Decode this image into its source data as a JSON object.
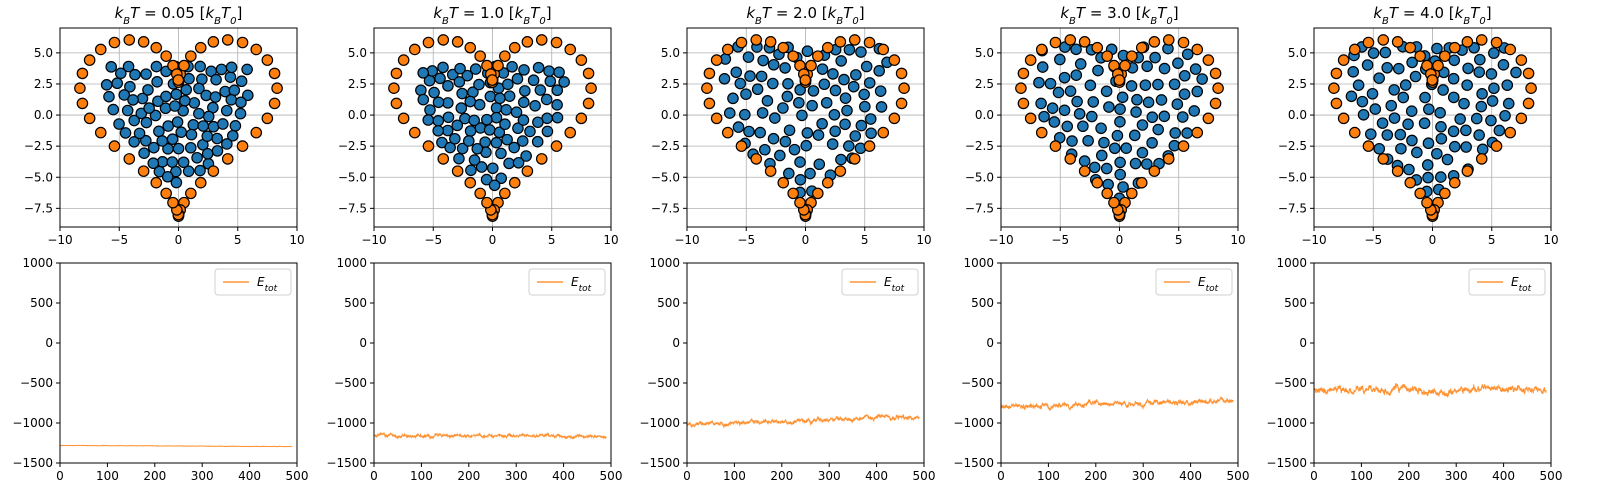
{
  "figure": {
    "panel_titles": [
      "k_B T = 0.05 [k_B T_0]",
      "k_B T = 1.0 [k_B T_0]",
      "k_B T = 2.0 [k_B T_0]",
      "k_B T = 3.0 [k_B T_0]",
      "k_B T = 4.0 [k_B T_0]"
    ],
    "legend_label": "E_tot"
  },
  "chart_data": [
    {
      "type": "scatter",
      "panel": 1,
      "title": "k_B T = 0.05 [k_B T_0]",
      "xlim": [
        -10,
        10
      ],
      "ylim": [
        -9,
        7
      ],
      "xticks": [
        "−10",
        "−5",
        "0",
        "5",
        "10"
      ],
      "yticks": [
        "−7.5",
        "−5.0",
        "−2.5",
        "0.0",
        "2.5",
        "5.0"
      ],
      "grid": true,
      "series": [
        {
          "role": "boundary",
          "color": "#ff7f0e",
          "shape": "heart"
        },
        {
          "role": "interior",
          "color": "#1f77b4",
          "distribution": "packed"
        }
      ]
    },
    {
      "type": "scatter",
      "panel": 2,
      "title": "k_B T = 1.0 [k_B T_0]",
      "xlim": [
        -10,
        10
      ],
      "ylim": [
        -9,
        7
      ],
      "xticks": [
        "−10",
        "−5",
        "0",
        "5",
        "10"
      ],
      "yticks": [
        "−7.5",
        "−5.0",
        "−2.5",
        "0.0",
        "2.5",
        "5.0"
      ],
      "grid": true,
      "series": [
        {
          "role": "boundary",
          "color": "#ff7f0e",
          "shape": "heart"
        },
        {
          "role": "interior",
          "color": "#1f77b4",
          "distribution": "packed"
        }
      ]
    },
    {
      "type": "scatter",
      "panel": 3,
      "title": "k_B T = 2.0 [k_B T_0]",
      "xlim": [
        -10,
        10
      ],
      "ylim": [
        -9,
        7
      ],
      "xticks": [
        "−10",
        "−5",
        "0",
        "5",
        "10"
      ],
      "yticks": [
        "−7.5",
        "−5.0",
        "−2.5",
        "0.0",
        "2.5",
        "5.0"
      ],
      "grid": true,
      "series": [
        {
          "role": "boundary",
          "color": "#ff7f0e",
          "shape": "heart"
        },
        {
          "role": "interior",
          "color": "#1f77b4",
          "distribution": "spread"
        }
      ]
    },
    {
      "type": "scatter",
      "panel": 4,
      "title": "k_B T = 3.0 [k_B T_0]",
      "xlim": [
        -10,
        10
      ],
      "ylim": [
        -9,
        7
      ],
      "xticks": [
        "−10",
        "−5",
        "0",
        "5",
        "10"
      ],
      "yticks": [
        "−7.5",
        "−5.0",
        "−2.5",
        "0.0",
        "2.5",
        "5.0"
      ],
      "grid": true,
      "series": [
        {
          "role": "boundary",
          "color": "#ff7f0e",
          "shape": "heart"
        },
        {
          "role": "interior",
          "color": "#1f77b4",
          "distribution": "spread"
        }
      ]
    },
    {
      "type": "scatter",
      "panel": 5,
      "title": "k_B T = 4.0 [k_B T_0]",
      "xlim": [
        -10,
        10
      ],
      "ylim": [
        -9,
        7
      ],
      "xticks": [
        "−10",
        "−5",
        "0",
        "5",
        "10"
      ],
      "yticks": [
        "−7.5",
        "−5.0",
        "−2.5",
        "0.0",
        "2.5",
        "5.0"
      ],
      "grid": true,
      "series": [
        {
          "role": "boundary",
          "color": "#ff7f0e",
          "shape": "heart"
        },
        {
          "role": "interior",
          "color": "#1f77b4",
          "distribution": "spread"
        }
      ]
    },
    {
      "type": "line",
      "panel": 1,
      "xlim": [
        0,
        500
      ],
      "ylim": [
        -1500,
        1000
      ],
      "xticks": [
        "0",
        "100",
        "200",
        "300",
        "400",
        "500"
      ],
      "yticks": [
        "−1500",
        "−1000",
        "−500",
        "0",
        "500",
        "1000"
      ],
      "legend": "top-right",
      "series": [
        {
          "name": "E_tot",
          "color": "#ff7f0e",
          "x_end": 490,
          "start": -1280,
          "end": -1295,
          "noise": 2
        }
      ]
    },
    {
      "type": "line",
      "panel": 2,
      "xlim": [
        0,
        500
      ],
      "ylim": [
        -1500,
        1000
      ],
      "xticks": [
        "0",
        "100",
        "200",
        "300",
        "400",
        "500"
      ],
      "yticks": [
        "−1500",
        "−1000",
        "−500",
        "0",
        "500",
        "1000"
      ],
      "legend": "top-right",
      "series": [
        {
          "name": "E_tot",
          "color": "#ff7f0e",
          "x_end": 490,
          "start": -1160,
          "end": -1165,
          "noise": 18
        }
      ]
    },
    {
      "type": "line",
      "panel": 3,
      "xlim": [
        0,
        500
      ],
      "ylim": [
        -1500,
        1000
      ],
      "xticks": [
        "0",
        "100",
        "200",
        "300",
        "400",
        "500"
      ],
      "yticks": [
        "−1500",
        "−1000",
        "−500",
        "0",
        "500",
        "1000"
      ],
      "legend": "top-right",
      "series": [
        {
          "name": "E_tot",
          "color": "#ff7f0e",
          "x_end": 490,
          "start": -1020,
          "end": -920,
          "noise": 25
        }
      ]
    },
    {
      "type": "line",
      "panel": 4,
      "xlim": [
        0,
        500
      ],
      "ylim": [
        -1500,
        1000
      ],
      "xticks": [
        "0",
        "100",
        "200",
        "300",
        "400",
        "500"
      ],
      "yticks": [
        "−1500",
        "−1000",
        "−500",
        "0",
        "500",
        "1000"
      ],
      "legend": "top-right",
      "series": [
        {
          "name": "E_tot",
          "color": "#ff7f0e",
          "x_end": 490,
          "start": -800,
          "end": -720,
          "noise": 30
        }
      ]
    },
    {
      "type": "line",
      "panel": 5,
      "xlim": [
        0,
        500
      ],
      "ylim": [
        -1500,
        1000
      ],
      "xticks": [
        "0",
        "100",
        "200",
        "300",
        "400",
        "500"
      ],
      "yticks": [
        "−1500",
        "−1000",
        "−500",
        "0",
        "500",
        "1000"
      ],
      "legend": "top-right",
      "series": [
        {
          "name": "E_tot",
          "color": "#ff7f0e",
          "x_end": 490,
          "start": -590,
          "end": -580,
          "noise": 40
        }
      ]
    }
  ]
}
